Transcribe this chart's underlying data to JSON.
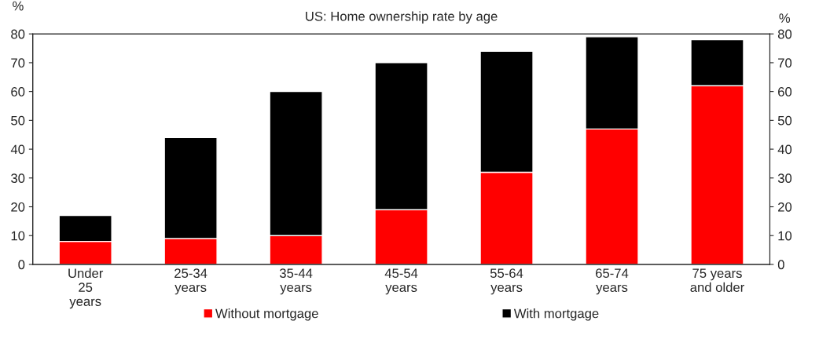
{
  "chart_data": {
    "type": "bar",
    "title": "US: Home ownership rate by age",
    "categories": [
      "Under\n25\nyears",
      "25-34\nyears",
      "35-44\nyears",
      "45-54\nyears",
      "55-64\nyears",
      "65-74\nyears",
      "75 years\nand older"
    ],
    "series": [
      {
        "name": "Without mortgage",
        "color": "#ff0000",
        "values": [
          8,
          9,
          10,
          19,
          32,
          47,
          62
        ]
      },
      {
        "name": "With mortgage",
        "color": "#000000",
        "values": [
          9,
          35,
          50,
          51,
          42,
          32,
          16
        ]
      }
    ],
    "stacked": true,
    "ylabel": "%",
    "y2label": "%",
    "ylim": [
      0,
      80
    ],
    "yticks": [
      0,
      10,
      20,
      30,
      40,
      50,
      60,
      70,
      80
    ],
    "y2lim": [
      0,
      80
    ],
    "y2ticks": [
      0,
      10,
      20,
      30,
      40,
      50,
      60,
      70,
      80
    ],
    "grid": false,
    "legend": "bottom"
  }
}
